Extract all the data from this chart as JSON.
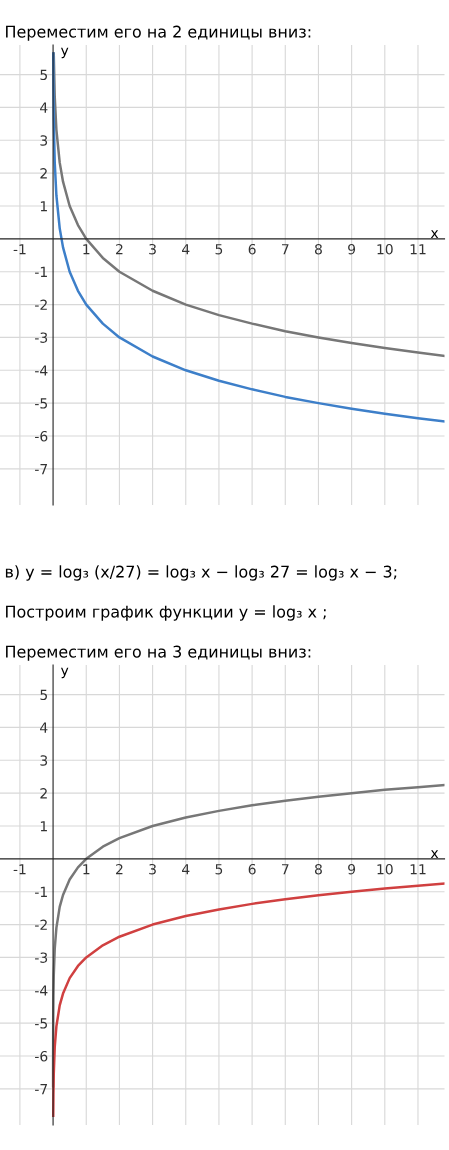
{
  "chart_data": [
    {
      "type": "line",
      "title": "Переместим его на 2 единицы вниз:",
      "xlabel": "x",
      "ylabel": "y",
      "xlim": [
        -1.6,
        11.8
      ],
      "ylim": [
        -8.1,
        5.9
      ],
      "xticks": [
        -1,
        1,
        2,
        3,
        4,
        5,
        6,
        7,
        8,
        9,
        10,
        11
      ],
      "yticks": [
        -7,
        -6,
        -5,
        -4,
        -3,
        -2,
        -1,
        1,
        2,
        3,
        4,
        5
      ],
      "grid": true,
      "series": [
        {
          "color": "#777777",
          "x": [
            0.02,
            0.05,
            0.1,
            0.2,
            0.3,
            0.5,
            0.75,
            1,
            1.5,
            2,
            3,
            4,
            5,
            6,
            7,
            8,
            9,
            10,
            11,
            11.8
          ],
          "values": [
            5.64,
            4.32,
            3.32,
            2.32,
            1.74,
            1,
            0.42,
            0,
            -0.58,
            -1,
            -1.58,
            -2,
            -2.32,
            -2.58,
            -2.81,
            -3,
            -3.17,
            -3.32,
            -3.46,
            -3.56
          ]
        },
        {
          "color": "#3d7fc9",
          "x": [
            0.005,
            0.01,
            0.02,
            0.05,
            0.1,
            0.2,
            0.3,
            0.5,
            0.75,
            1,
            1.5,
            2,
            3,
            4,
            5,
            6,
            7,
            8,
            9,
            10,
            11,
            11.8
          ],
          "values": [
            5.64,
            4.64,
            3.64,
            2.32,
            1.32,
            0.32,
            -0.26,
            -1,
            -1.58,
            -2,
            -2.58,
            -3,
            -3.58,
            -4,
            -4.32,
            -4.58,
            -4.81,
            -5,
            -5.17,
            -5.32,
            -5.46,
            -5.56
          ]
        }
      ]
    },
    {
      "type": "line",
      "title": "Переместим его на 3 единицы вниз:",
      "xlabel": "x",
      "ylabel": "y",
      "annotations": [
        "в) y = log₃ (x/27) = log₃ x − log₃ 27 = log₃ x − 3;",
        "Построим график функции y = log₃ x ;"
      ],
      "xlim": [
        -1.6,
        11.8
      ],
      "ylim": [
        -8.1,
        5.9
      ],
      "xticks": [
        -1,
        1,
        2,
        3,
        4,
        5,
        6,
        7,
        8,
        9,
        10,
        11
      ],
      "yticks": [
        -7,
        -6,
        -5,
        -4,
        -3,
        -2,
        -1,
        1,
        2,
        3,
        4,
        5
      ],
      "grid": true,
      "series": [
        {
          "color": "#777777",
          "x": [
            0.0005,
            0.001,
            0.005,
            0.01,
            0.02,
            0.05,
            0.1,
            0.2,
            0.3,
            0.5,
            0.75,
            1,
            1.5,
            2,
            3,
            4,
            5,
            6,
            7,
            8,
            9,
            10,
            11,
            11.8
          ],
          "values": [
            -6.92,
            -6.29,
            -4.82,
            -4.19,
            -3.56,
            -2.73,
            -2.1,
            -1.46,
            -1.1,
            -0.63,
            -0.26,
            0,
            0.37,
            0.63,
            1,
            1.26,
            1.46,
            1.63,
            1.77,
            1.89,
            2,
            2.1,
            2.18,
            2.25
          ]
        },
        {
          "color": "#d04040",
          "x": [
            0.005,
            0.01,
            0.02,
            0.05,
            0.1,
            0.2,
            0.3,
            0.5,
            0.75,
            1,
            1.5,
            2,
            3,
            4,
            5,
            6,
            7,
            8,
            9,
            10,
            11,
            11.8
          ],
          "values": [
            -7.82,
            -7.19,
            -6.56,
            -5.73,
            -5.1,
            -4.46,
            -4.1,
            -3.63,
            -3.26,
            -3,
            -2.63,
            -2.37,
            -2,
            -1.74,
            -1.54,
            -1.37,
            -1.23,
            -1.11,
            -1,
            -0.9,
            -0.82,
            -0.75
          ]
        }
      ]
    }
  ]
}
